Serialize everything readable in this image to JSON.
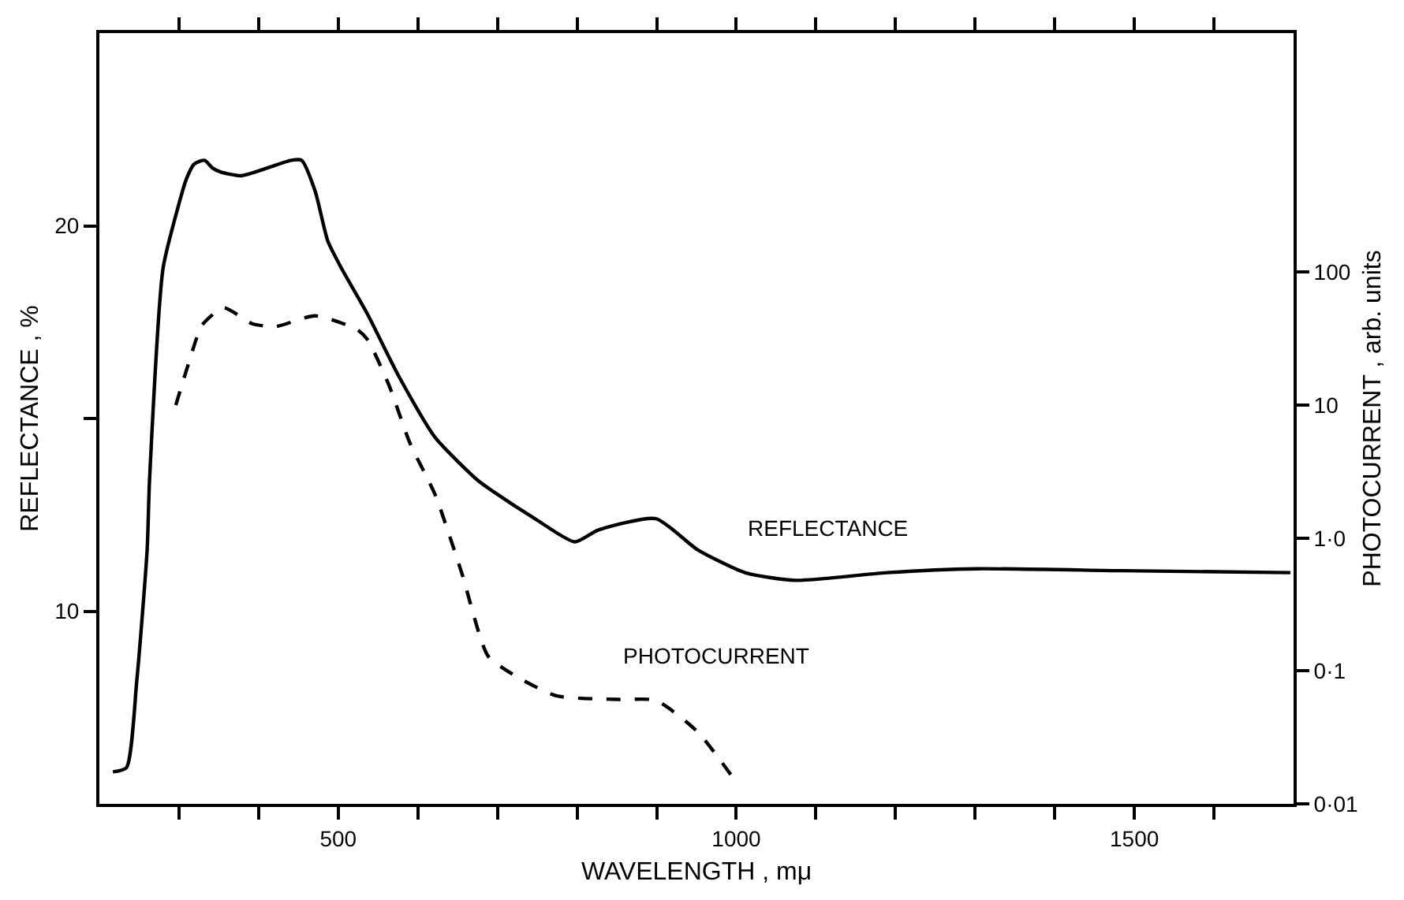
{
  "chart_data": {
    "type": "line",
    "xlabel": "WAVELENGTH , mμ",
    "ylabel": "REFLECTANCE , %",
    "y2label": "PHOTOCURRENT , arb. units",
    "xlim": [
      200,
      1700
    ],
    "xticks": [
      {
        "value": 300,
        "label": null
      },
      {
        "value": 400,
        "label": null
      },
      500,
      {
        "value": 600,
        "label": null
      },
      {
        "value": 700,
        "label": null
      },
      {
        "value": 800,
        "label": null
      },
      {
        "value": 900,
        "label": null
      },
      1000,
      {
        "value": 1100,
        "label": null
      },
      {
        "value": 1200,
        "label": null
      },
      {
        "value": 1300,
        "label": null
      },
      {
        "value": 1400,
        "label": null
      },
      1500,
      {
        "value": 1600,
        "label": null
      }
    ],
    "ylim": [
      5,
      25
    ],
    "yticks": [
      10,
      {
        "value": 15,
        "label": null
      },
      20
    ],
    "y2lim": [
      0.01,
      6300
    ],
    "y2ticks": [
      {
        "value": 0.01,
        "label": "0·01"
      },
      {
        "value": 0.1,
        "label": "0·1"
      },
      {
        "value": 1,
        "label": "1·0"
      },
      10,
      100
    ],
    "log": "y2",
    "grid": false,
    "legend": false,
    "marker": "none",
    "series": [
      {
        "name": "REFLECTANCE",
        "color": "#000000",
        "line_style": "solid",
        "x": [
          217,
          234,
          247,
          260,
          263,
          280,
          299,
          309,
          319,
          332,
          342,
          352,
          378,
          411,
          441,
          454,
          471,
          487,
          504,
          537,
          576,
          622,
          675,
          695,
          747,
          797,
          826,
          899,
          951,
          1011,
          1074,
          1189,
          1301,
          1485,
          1696
        ],
        "values": [
          5.83,
          5.94,
          8.2,
          11.6,
          13.4,
          18.9,
          20.5,
          21.2,
          21.6,
          21.7,
          21.5,
          21.4,
          21.3,
          21.5,
          21.7,
          21.7,
          20.9,
          19.6,
          18.9,
          17.7,
          16.1,
          14.5,
          13.4,
          13.1,
          12.4,
          11.8,
          12.1,
          12.4,
          11.6,
          11.0,
          10.8,
          11.0,
          11.1,
          11.05,
          11.0
        ]
      },
      {
        "name": "PHOTOCURRENT",
        "color": "#000000",
        "line_style": "dashed",
        "axis": "y2",
        "x": [
          296,
          313,
          329,
          356,
          392,
          421,
          471,
          524,
          537,
          564,
          590,
          622,
          655,
          688,
          721,
          774,
          853,
          899,
          951,
          995
        ],
        "values": [
          10,
          21.5,
          40,
          54,
          41,
          39,
          47,
          37,
          31,
          14,
          5.2,
          2.1,
          0.55,
          0.13,
          0.093,
          0.065,
          0.061,
          0.06,
          0.035,
          0.016
        ]
      }
    ]
  }
}
